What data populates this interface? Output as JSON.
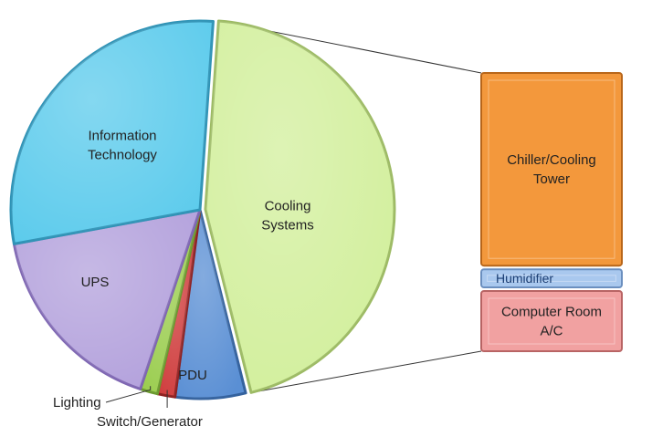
{
  "chart_data": {
    "type": "bar-of-pie",
    "title": "",
    "pie": {
      "slices": [
        {
          "label": "Cooling Systems",
          "value": 45,
          "color": "#d2ef9c",
          "stroke": "#9cba63",
          "label_lines": [
            "Cooling",
            "Systems"
          ]
        },
        {
          "label": "PDU",
          "value": 6,
          "color": "#5a8fd4",
          "stroke": "#34629e",
          "label_lines": [
            "PDU"
          ]
        },
        {
          "label": "Switch/Generator",
          "value": 1.5,
          "color": "#cf3c3c",
          "stroke": "#8e2020",
          "label_lines": [
            "Switch/Generator"
          ]
        },
        {
          "label": "Lighting",
          "value": 1.5,
          "color": "#9acd4e",
          "stroke": "#6b9a2e",
          "label_lines": [
            "Lighting"
          ]
        },
        {
          "label": "UPS",
          "value": 17,
          "color": "#b3a1dc",
          "stroke": "#7e66b2",
          "label_lines": [
            "UPS"
          ]
        },
        {
          "label": "Information Technology",
          "value": 29,
          "color": "#5ccbec",
          "stroke": "#2f93b6",
          "label_lines": [
            "Information",
            "Technology"
          ]
        }
      ],
      "start_angle_deg": -86
    },
    "breakdown_of": "Cooling Systems",
    "bar": {
      "segments": [
        {
          "label": "Chiller/Cooling Tower",
          "value": 32,
          "color": "#f3983c",
          "stroke": "#b8661a",
          "label_lines": [
            "Chiller/Cooling",
            "Tower"
          ]
        },
        {
          "label": "Humidifier",
          "value": 3,
          "color": "#a9c8ee",
          "stroke": "#6b8fbf",
          "label_lines": [
            "Humidifier"
          ]
        },
        {
          "label": "Computer Room A/C",
          "value": 10,
          "color": "#f1a1a1",
          "stroke": "#b86464",
          "label_lines": [
            "Computer Room",
            "A/C"
          ]
        }
      ]
    }
  }
}
